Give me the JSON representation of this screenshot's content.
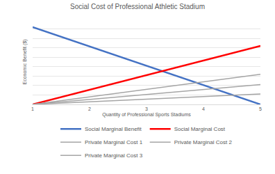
{
  "chart_data": {
    "type": "line",
    "title": "Social Cost of Professional Athletic Stadium",
    "x_label": "Quantity of Professional Sports Stadiums",
    "y_label": "Economic Benefit ($)",
    "x": [
      1,
      2,
      3,
      4,
      5
    ],
    "series": [
      {
        "name": "Social Marginal Benefit",
        "color": "#4472c4",
        "values": [
          8.2,
          6.15,
          4.1,
          2.05,
          0
        ]
      },
      {
        "name": "Social Marginal Cost",
        "color": "#ff0000",
        "values": [
          0,
          1.55,
          3.1,
          4.65,
          6.2
        ]
      },
      {
        "name": "Private Marginal Cost 1",
        "color": "#a5a5a5",
        "values": [
          0,
          0.8,
          1.6,
          2.4,
          3.2
        ]
      },
      {
        "name": "Private Marginal Cost 2",
        "color": "#a5a5a5",
        "values": [
          0,
          0.53,
          1.05,
          1.58,
          2.1
        ]
      },
      {
        "name": "Private Marginal Cost 3",
        "color": "#a5a5a5",
        "values": [
          0,
          0.28,
          0.55,
          0.83,
          1.1
        ]
      }
    ],
    "xlim": [
      1,
      5
    ],
    "xticks": [
      1,
      2,
      3,
      4,
      5
    ],
    "ylim": [
      0,
      9
    ],
    "yticks": [
      0,
      1,
      2,
      3,
      4,
      5,
      6,
      7,
      8,
      9
    ],
    "grid": true,
    "legend": "bottom",
    "tick_labels": "x"
  }
}
